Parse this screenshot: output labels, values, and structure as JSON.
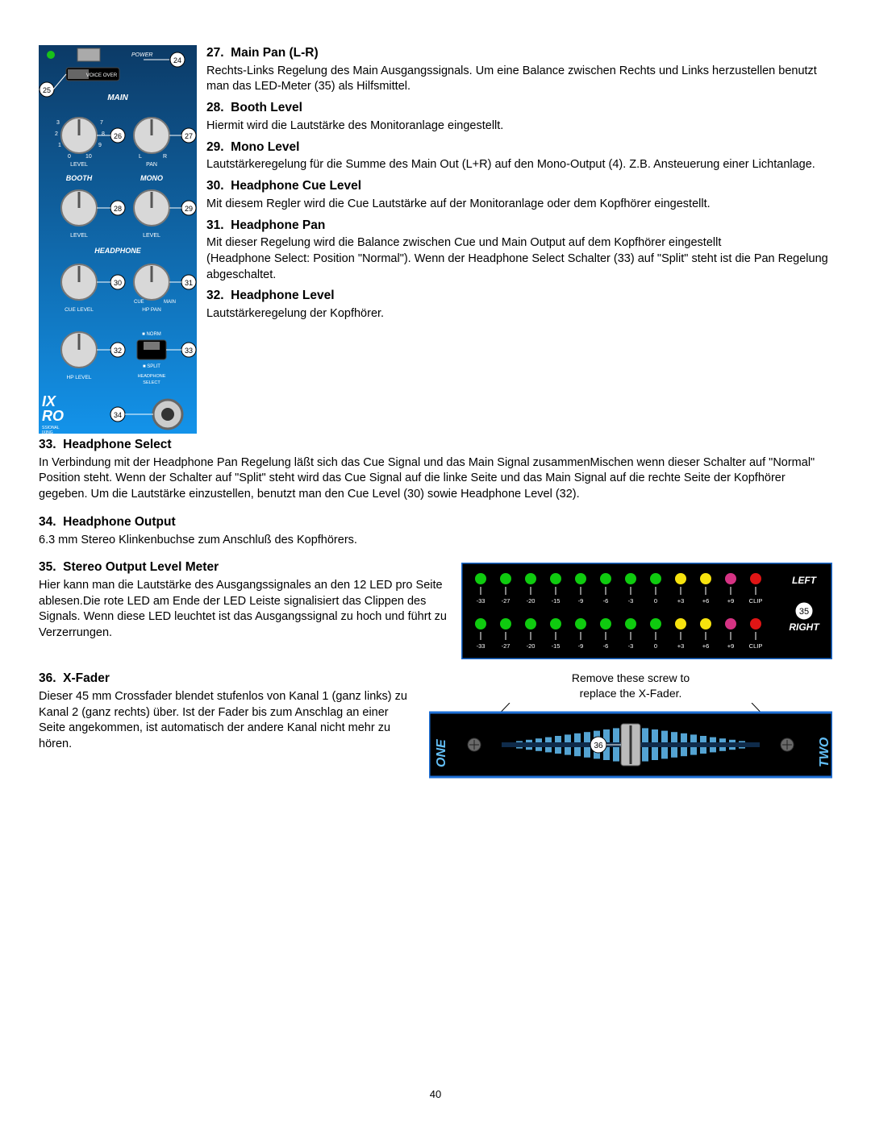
{
  "page_number": "40",
  "mixer_panel": {
    "callouts": [
      "24",
      "25",
      "26",
      "27",
      "28",
      "29",
      "30",
      "31",
      "32",
      "33",
      "34"
    ],
    "labels": {
      "power": "POWER",
      "voiceover": "VOICE OVER",
      "main": "MAIN",
      "level_l": "LEVEL",
      "pan": "PAN",
      "l": "L",
      "r": "R",
      "booth": "BOOTH",
      "mono": "MONO",
      "headphone": "HEADPHONE",
      "cuelevel": "CUE LEVEL",
      "hppan": "HP PAN",
      "cue": "CUE",
      "main2": "MAIN",
      "hplevel": "HP LEVEL",
      "hpselect": "HEADPHONE\nSELECT",
      "norm": "NORM",
      "split": "SPLIT"
    },
    "colors": {
      "bg_top": "#0c3a66",
      "bg_bottom": "#1393ea",
      "knob_body": "#d8d8d8",
      "knob_ring": "#888",
      "text": "#ffffff",
      "callout_bg": "#ffffff",
      "callout_border": "#000000",
      "led_green": "#19c219"
    }
  },
  "sections": [
    {
      "n": "27",
      "title": "Main Pan (L-R)",
      "body": "Rechts-Links Regelung des Main Ausgangssignals. Um eine Balance zwischen Rechts und Links herzustellen benutzt man das LED-Meter (35) als Hilfsmittel."
    },
    {
      "n": "28",
      "title": "Booth Level",
      "body": "Hiermit wird die Lautstärke des Monitoranlage eingestellt."
    },
    {
      "n": "29",
      "title": "Mono Level",
      "body": "Lautstärkeregelung für die Summe des Main Out (L+R) auf den Mono-Output (4). Z.B. Ansteuerung einer Lichtanlage."
    },
    {
      "n": "30",
      "title": "Headphone Cue Level",
      "body": "Mit diesem Regler wird die Cue Lautstärke auf der Monitoranlage oder dem Kopfhörer eingestellt."
    },
    {
      "n": "31",
      "title": "Headphone Pan",
      "body": "Mit dieser Regelung wird die Balance zwischen Cue und Main Output auf dem Kopfhörer eingestellt\n(Headphone Select: Position \"Normal\"). Wenn der Headphone Select Schalter (33) auf \"Split\" steht ist die Pan Regelung abgeschaltet."
    },
    {
      "n": "32",
      "title": "Headphone Level",
      "body": "Lautstärkeregelung der Kopfhörer."
    },
    {
      "n": "33",
      "title": "Headphone Select",
      "body": "In Verbindung mit der Headphone Pan Regelung läßt sich das Cue Signal und das Main Signal zusammenMischen wenn dieser Schalter auf \"Normal\" Position steht. Wenn der Schalter auf \"Split\" steht wird das Cue Signal auf die linke Seite und das Main Signal auf die rechte Seite der Kopfhörer gegeben. Um die Lautstärke einzustellen, benutzt man den Cue Level (30) sowie Headphone Level (32)."
    },
    {
      "n": "34",
      "title": "Headphone Output",
      "body": "6.3 mm Stereo Klinkenbuchse zum Anschluß des Kopfhörers."
    },
    {
      "n": "35",
      "title": "Stereo Output Level Meter",
      "body": "Hier kann man die Lautstärke des Ausgangssignales an den 12 LED pro Seite ablesen.Die rote LED am Ende der LED Leiste signalisiert das Clippen des Signals. Wenn diese LED leuchtet ist das Ausgangssignal zu hoch und führt zu Verzerrungen."
    },
    {
      "n": "36",
      "title": "X-Fader",
      "body": "Dieser 45 mm Crossfader blendet stufenlos von Kanal 1 (ganz links) zu Kanal 2 (ganz rechts) über. Ist der Fader bis zum Anschlag an einer Seite angekommen, ist automatisch der andere Kanal nicht mehr zu hören."
    }
  ],
  "meter": {
    "callout": "35",
    "scale": [
      "-33",
      "-27",
      "-20",
      "-15",
      "-9",
      "-6",
      "-3",
      "0",
      "+3",
      "+6",
      "+9",
      "CLIP"
    ],
    "left_label": "LEFT",
    "right_label": "RIGHT",
    "colors": {
      "bg": "#000000",
      "border": "#1e6fd6",
      "green": "#0fcb0f",
      "yellow": "#f6e20e",
      "pink": "#d63384",
      "red": "#e01515",
      "text": "#ffffff",
      "callout_bg": "#ffffff"
    },
    "led_colors_top": [
      "green",
      "green",
      "green",
      "green",
      "green",
      "green",
      "green",
      "green",
      "yellow",
      "yellow",
      "pink",
      "red"
    ],
    "led_colors_bottom": [
      "green",
      "green",
      "green",
      "green",
      "green",
      "green",
      "green",
      "green",
      "yellow",
      "yellow",
      "pink",
      "red"
    ]
  },
  "xfader": {
    "callout": "36",
    "caption": "Remove these screw to\nreplace the X-Fader.",
    "one": "ONE",
    "two": "TWO",
    "colors": {
      "bg_outer": "#000000",
      "border": "#1e6fd6",
      "track": "#0f2b4a",
      "wave": "#63bff7",
      "side_text": "#63bff7",
      "screw": "#6a6a6a"
    }
  }
}
